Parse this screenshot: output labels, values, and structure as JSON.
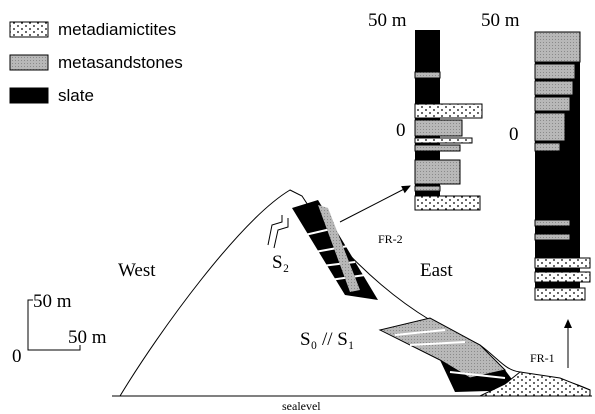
{
  "legend": [
    {
      "label": "metadiamictites"
    },
    {
      "label": "metasandstones"
    },
    {
      "label": "slate"
    }
  ],
  "columns": [
    {
      "name": "FR-2",
      "top_label": "50 m",
      "base_label": "0"
    },
    {
      "name": "FR-1",
      "top_label": "50 m",
      "base_label": "0"
    }
  ],
  "labels": {
    "west": "West",
    "east": "East",
    "s2": "S₂",
    "s0s1": "S₀ // S₁",
    "sealevel": "sealevel"
  },
  "scale_bar": {
    "vertical": "50 m",
    "horizontal": "50 m",
    "origin": "0"
  }
}
